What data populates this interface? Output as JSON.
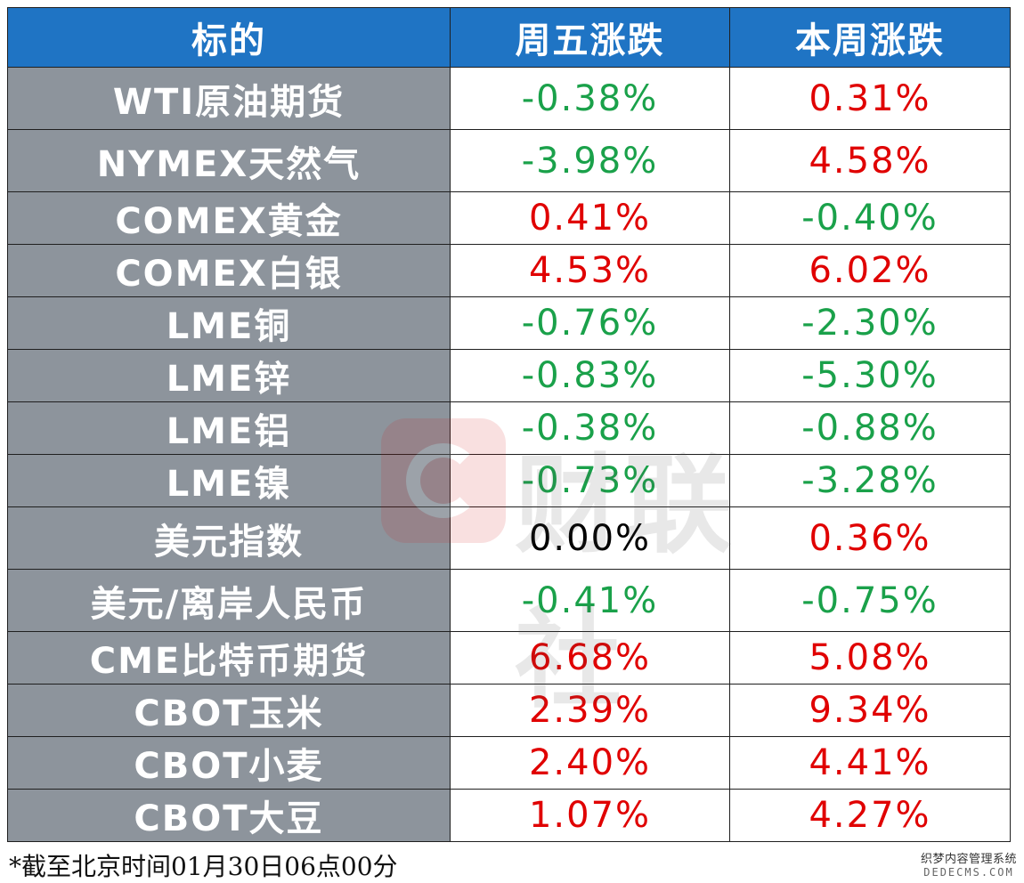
{
  "table": {
    "headers": [
      "标的",
      "周五涨跌",
      "本周涨跌"
    ],
    "rows": [
      {
        "name": "WTI原油期货",
        "friday": "-0.38%",
        "week": "0.31%",
        "friday_dir": "down",
        "week_dir": "up"
      },
      {
        "name": "NYMEX天然气",
        "friday": "-3.98%",
        "week": "4.58%",
        "friday_dir": "down",
        "week_dir": "up"
      },
      {
        "name": "COMEX黄金",
        "friday": "0.41%",
        "week": "-0.40%",
        "friday_dir": "up",
        "week_dir": "down"
      },
      {
        "name": "COMEX白银",
        "friday": "4.53%",
        "week": "6.02%",
        "friday_dir": "up",
        "week_dir": "up"
      },
      {
        "name": "LME铜",
        "friday": "-0.76%",
        "week": "-2.30%",
        "friday_dir": "down",
        "week_dir": "down"
      },
      {
        "name": "LME锌",
        "friday": "-0.83%",
        "week": "-5.30%",
        "friday_dir": "down",
        "week_dir": "down"
      },
      {
        "name": "LME铝",
        "friday": "-0.38%",
        "week": "-0.88%",
        "friday_dir": "down",
        "week_dir": "down"
      },
      {
        "name": "LME镍",
        "friday": "-0.73%",
        "week": "-3.28%",
        "friday_dir": "down",
        "week_dir": "down"
      },
      {
        "name": "美元指数",
        "friday": "0.00%",
        "week": "0.36%",
        "friday_dir": "flat",
        "week_dir": "up"
      },
      {
        "name": "美元/离岸人民币",
        "friday": "-0.41%",
        "week": "-0.75%",
        "friday_dir": "down",
        "week_dir": "down"
      },
      {
        "name": "CME比特币期货",
        "friday": "6.68%",
        "week": "5.08%",
        "friday_dir": "up",
        "week_dir": "up"
      },
      {
        "name": "CBOT玉米",
        "friday": "2.39%",
        "week": "9.34%",
        "friday_dir": "up",
        "week_dir": "up"
      },
      {
        "name": "CBOT小麦",
        "friday": "2.40%",
        "week": "4.41%",
        "friday_dir": "up",
        "week_dir": "up"
      },
      {
        "name": "CBOT大豆",
        "friday": "1.07%",
        "week": "4.27%",
        "friday_dir": "up",
        "week_dir": "up"
      }
    ]
  },
  "footnote": "*截至北京时间01月30日06点00分",
  "watermark": {
    "text": "财联社",
    "icon": "cls-logo-icon"
  },
  "site_mark": {
    "line1": "织梦内容管理系统",
    "line2": "DEDECMS.COM"
  },
  "colors": {
    "header_bg": "#1f74c4",
    "name_bg": "#8d949c",
    "up": "#e00000",
    "down": "#1aa14a",
    "flat": "#000000"
  }
}
